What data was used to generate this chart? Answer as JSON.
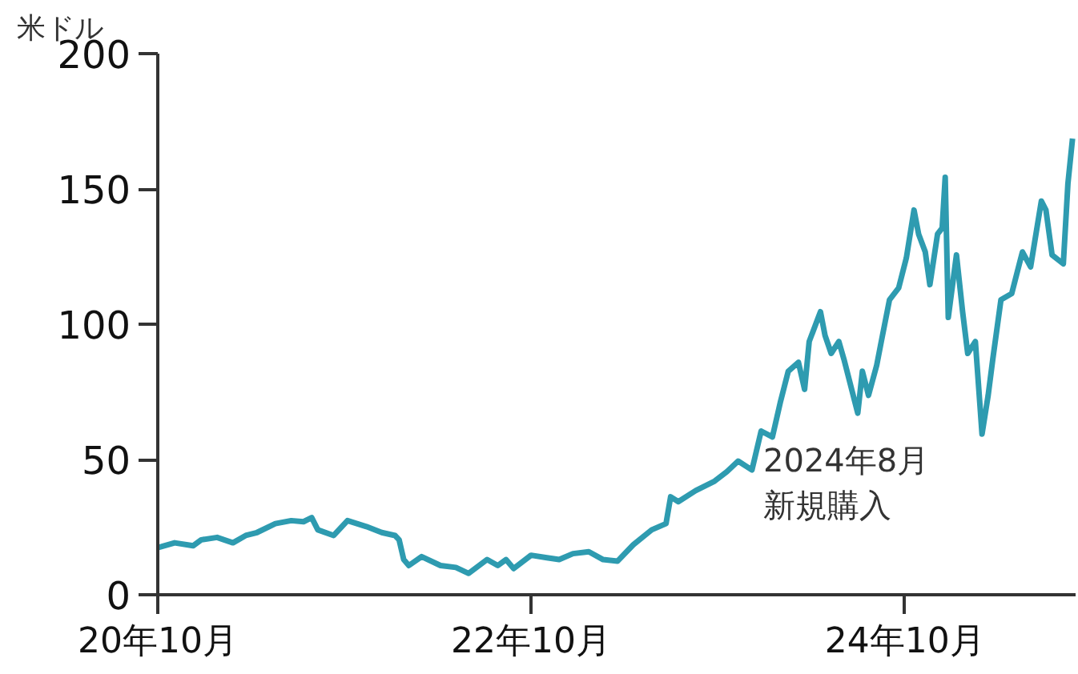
{
  "chart_data": {
    "type": "line",
    "ylabel": "米ドル",
    "annotations": [
      "2024年8月",
      "新規購入"
    ],
    "xlim": [
      "2020-10-01",
      "2025-08-31"
    ],
    "ylim": [
      0,
      200
    ],
    "yticks": [
      0,
      50,
      100,
      150,
      200
    ],
    "xticks": [
      {
        "value": "2020-10-01",
        "label": "20年10月"
      },
      {
        "value": "2022-10-01",
        "label": "22年10月"
      },
      {
        "value": "2024-10-01",
        "label": "24年10月"
      }
    ],
    "marker": "none",
    "line_style": "solid",
    "series": [
      {
        "color": "#2e9bb0",
        "x": [
          "2020-10-01",
          "2020-11-03",
          "2020-12-09",
          "2020-12-25",
          "2021-01-25",
          "2021-02-25",
          "2021-03-22",
          "2021-04-13",
          "2021-05-19",
          "2021-06-19",
          "2021-07-13",
          "2021-07-29",
          "2021-08-10",
          "2021-09-10",
          "2021-10-07",
          "2021-11-13",
          "2021-12-13",
          "2022-01-08",
          "2022-01-16",
          "2022-01-25",
          "2022-02-04",
          "2022-03-01",
          "2022-04-07",
          "2022-05-07",
          "2022-06-01",
          "2022-07-07",
          "2022-07-28",
          "2022-08-13",
          "2022-08-28",
          "2022-10-01",
          "2022-11-01",
          "2022-11-25",
          "2022-12-22",
          "2023-01-22",
          "2023-02-19",
          "2023-03-19",
          "2023-04-19",
          "2023-05-25",
          "2023-06-22",
          "2023-07-01",
          "2023-07-16",
          "2023-08-19",
          "2023-09-25",
          "2023-10-19",
          "2023-11-10",
          "2023-12-07",
          "2023-12-25",
          "2024-01-16",
          "2024-02-01",
          "2024-02-16",
          "2024-03-07",
          "2024-03-19",
          "2024-03-28",
          "2024-04-19",
          "2024-04-28",
          "2024-05-10",
          "2024-05-25",
          "2024-06-04",
          "2024-07-01",
          "2024-07-10",
          "2024-07-22",
          "2024-08-07",
          "2024-08-16",
          "2024-09-01",
          "2024-09-19",
          "2024-10-04",
          "2024-10-19",
          "2024-10-28",
          "2024-11-10",
          "2024-11-19",
          "2024-12-04",
          "2024-12-13",
          "2024-12-19",
          "2024-12-25",
          "2025-01-10",
          "2025-01-22",
          "2025-02-01",
          "2025-02-16",
          "2025-03-01",
          "2025-03-13",
          "2025-03-22",
          "2025-04-07",
          "2025-04-28",
          "2025-05-19",
          "2025-06-04",
          "2025-06-25",
          "2025-07-04",
          "2025-07-16",
          "2025-08-07",
          "2025-08-16",
          "2025-08-25"
        ],
        "values": [
          17.4,
          19.2,
          18.1,
          20.3,
          21.2,
          19.2,
          21.9,
          23.0,
          26.3,
          27.4,
          27.0,
          28.5,
          24.0,
          21.9,
          27.4,
          25.2,
          23.0,
          21.9,
          20.3,
          13.0,
          10.8,
          14.1,
          10.8,
          10.1,
          7.9,
          13.0,
          10.8,
          13.0,
          9.7,
          14.6,
          13.7,
          13.0,
          15.2,
          15.9,
          13.0,
          12.4,
          18.5,
          24.0,
          26.3,
          36.2,
          34.4,
          38.5,
          42.0,
          45.5,
          49.4,
          46.1,
          60.5,
          58.3,
          71.5,
          82.6,
          85.9,
          75.9,
          93.6,
          104.6,
          95.8,
          89.2,
          93.6,
          87.0,
          67.1,
          82.6,
          73.7,
          84.8,
          93.6,
          109.0,
          113.4,
          124.5,
          142.2,
          133.3,
          126.7,
          114.6,
          133.3,
          135.5,
          154.3,
          102.5,
          125.6,
          104.6,
          89.2,
          93.6,
          59.4,
          73.7,
          87.0,
          109.0,
          111.3,
          126.7,
          121.2,
          145.5,
          142.2,
          125.6,
          122.3,
          152.0,
          168.6
        ]
      }
    ]
  }
}
